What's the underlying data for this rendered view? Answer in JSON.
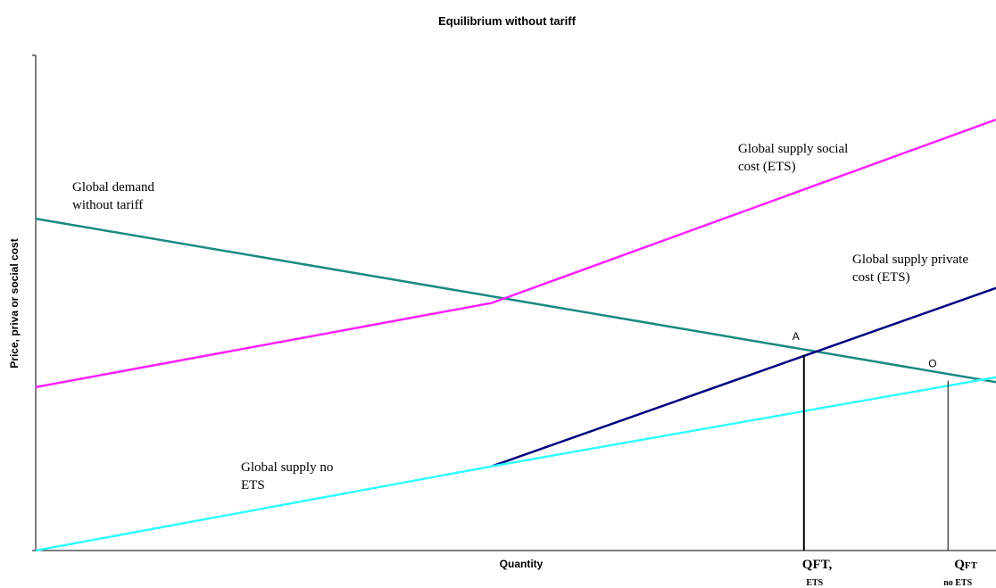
{
  "chart_data": {
    "type": "line",
    "title": "Equilibrium without tariff",
    "xlabel": "Quantity",
    "ylabel": "Price, priva or social cost",
    "xlim": [
      0,
      100
    ],
    "ylim": [
      0,
      100
    ],
    "grid": false,
    "series": [
      {
        "key": "demand",
        "label_lines": [
          "Global demand",
          "without tariff"
        ],
        "color": "#1a8a80",
        "x": [
          0,
          100
        ],
        "y": [
          67,
          34
        ]
      },
      {
        "key": "social",
        "label_lines": [
          "Global supply social",
          "cost (ETS)"
        ],
        "color": "#ff22ff",
        "x": [
          0,
          47.5,
          100
        ],
        "y": [
          33,
          50,
          87
        ]
      },
      {
        "key": "private",
        "label_lines": [
          "Global supply private",
          "cost (ETS)"
        ],
        "color": "#000080",
        "x": [
          47.5,
          100
        ],
        "y": [
          17,
          53
        ]
      },
      {
        "key": "noets",
        "label_lines": [
          "Global supply no",
          "ETS"
        ],
        "color": "#33ffff",
        "x": [
          0,
          47.5,
          100
        ],
        "y": [
          0,
          17,
          35
        ]
      }
    ],
    "points": [
      {
        "label": "A",
        "x": 80,
        "y": 39.5
      },
      {
        "label": "O",
        "x": 95,
        "y": 34.3
      }
    ],
    "quantity_marks": [
      {
        "main": "QFT,",
        "sub": "ETS",
        "x": 80
      },
      {
        "main": "Q",
        "main_small": "FT",
        "sub": "no ETS",
        "x": 95
      }
    ]
  }
}
